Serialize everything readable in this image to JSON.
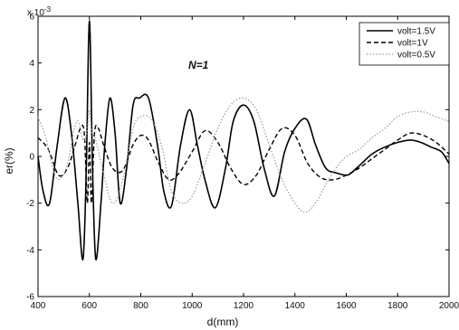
{
  "chart_data": {
    "type": "line",
    "title": "",
    "xlabel": "d(mm)",
    "ylabel": "er(%)",
    "xlim": [
      400,
      2000
    ],
    "ylim": [
      -0.006,
      0.006
    ],
    "xticks": [
      400,
      600,
      800,
      1000,
      1200,
      1400,
      1600,
      1800,
      2000
    ],
    "xtick_labels": [
      "400",
      "600",
      "800",
      "1000",
      "1200",
      "1400",
      "1600",
      "1800",
      "2000"
    ],
    "yticks": [
      -0.006,
      -0.004,
      -0.002,
      0,
      0.002,
      0.004,
      0.006
    ],
    "ytick_labels": [
      "-6",
      "-4",
      "-2",
      "0",
      "2",
      "4",
      "6"
    ],
    "y_multiplier": "x 10",
    "y_multiplier_exp": "-3",
    "annotation": "N=1",
    "grid": false,
    "legend_position": "top-right",
    "series": [
      {
        "name": "volt=1.5V",
        "style": "solid",
        "color": "#000000",
        "x": [
          400,
          420,
          445,
          475,
          505,
          530,
          555,
          575,
          588,
          600,
          612,
          625,
          645,
          660,
          680,
          700,
          720,
          745,
          770,
          795,
          830,
          865,
          890,
          920,
          955,
          990,
          1020,
          1050,
          1090,
          1130,
          1160,
          1200,
          1240,
          1280,
          1320,
          1360,
          1400,
          1445,
          1480,
          1520,
          1560,
          1600,
          1620,
          1660,
          1700,
          1750,
          1800,
          1850,
          1890,
          1930,
          1970,
          2000
        ],
        "y": [
          0,
          -0.0015,
          -0.002,
          0.0005,
          0.0025,
          0.001,
          -0.002,
          -0.0044,
          -0.0005,
          0.0058,
          -0.0005,
          -0.0044,
          -0.002,
          0.0005,
          0.0025,
          0.001,
          -0.002,
          -0.0005,
          0.0022,
          0.0025,
          0.0025,
          0.0005,
          -0.0015,
          -0.0021,
          0.0005,
          0.002,
          0.0005,
          -0.001,
          -0.0022,
          -0.0005,
          0.0015,
          0.0022,
          0.0015,
          -0.0005,
          -0.0017,
          0.0002,
          0.0012,
          0.0016,
          0.0005,
          -0.0005,
          -0.0007,
          -0.0008,
          -0.0007,
          -0.0003,
          0.0001,
          0.0004,
          0.0006,
          0.0007,
          0.0006,
          0.0004,
          0.0002,
          -0.0003
        ]
      },
      {
        "name": "volt=1V",
        "style": "dashed",
        "color": "#000000",
        "x": [
          400,
          440,
          480,
          515,
          545,
          565,
          580,
          592,
          600,
          608,
          620,
          635,
          655,
          690,
          730,
          770,
          800,
          830,
          870,
          910,
          950,
          1000,
          1050,
          1100,
          1150,
          1200,
          1250,
          1300,
          1350,
          1400,
          1450,
          1500,
          1550,
          1600,
          1650,
          1700,
          1750,
          1800,
          1850,
          1900,
          1950,
          2000
        ],
        "y": [
          0.0008,
          0.0003,
          -0.0008,
          -0.0005,
          0.0005,
          0.0012,
          0.001,
          -0.002,
          0.0006,
          -0.002,
          0.001,
          0.0012,
          0.0005,
          -0.0005,
          -0.0006,
          0.0005,
          0.0009,
          0.0007,
          -0.0003,
          -0.001,
          -0.0007,
          0.0002,
          0.0011,
          0.0006,
          -0.0005,
          -0.0012,
          -0.0008,
          0.0003,
          0.0012,
          0.0009,
          -0.0003,
          -0.0009,
          -0.001,
          -0.0008,
          -0.0005,
          -0.0001,
          0.0003,
          0.0007,
          0.001,
          0.0009,
          0.0006,
          0.0001
        ]
      },
      {
        "name": "volt=0.5V",
        "style": "dotted",
        "color": "#999999",
        "x": [
          400,
          430,
          470,
          510,
          550,
          575,
          590,
          600,
          610,
          625,
          650,
          690,
          730,
          770,
          800,
          840,
          880,
          920,
          960,
          1000,
          1050,
          1100,
          1150,
          1200,
          1250,
          1300,
          1350,
          1400,
          1440,
          1480,
          1520,
          1560,
          1600,
          1650,
          1700,
          1750,
          1800,
          1850,
          1900,
          1950,
          2000
        ],
        "y": [
          0.0017,
          0.0008,
          -0.0009,
          -0.0005,
          0.0015,
          0.0007,
          0.001,
          0.002,
          0.001,
          0.0007,
          -0.0005,
          -0.002,
          -0.001,
          0.0012,
          0.0017,
          0.0016,
          0.0005,
          -0.0015,
          -0.002,
          -0.0017,
          -0.0003,
          0.0012,
          0.0022,
          0.0025,
          0.002,
          0.0005,
          -0.001,
          -0.002,
          -0.0024,
          -0.002,
          -0.0012,
          -0.0005,
          0.0,
          0.0003,
          0.0008,
          0.0012,
          0.0017,
          0.0019,
          0.0019,
          0.0017,
          0.0015
        ]
      }
    ]
  }
}
